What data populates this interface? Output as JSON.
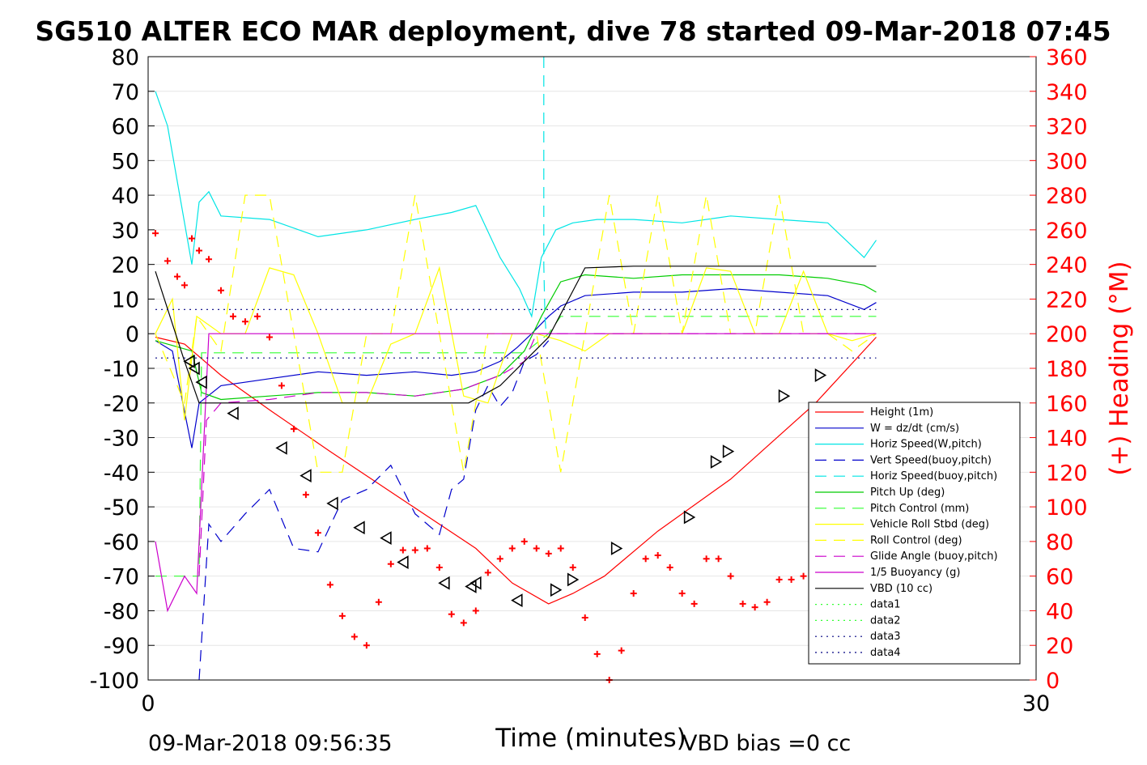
{
  "chart_data": {
    "type": "line",
    "title": "SG510 ALTER ECO MAR deployment, dive 78 started 09-Mar-2018 07:45",
    "xlabel": "Time (minutes)",
    "ylabel_right": "(+) Heading (°M)",
    "xlim": [
      0,
      30
    ],
    "ylim_left": [
      -100,
      80
    ],
    "ylim_right": [
      0,
      360
    ],
    "x_ticks": [
      "0",
      "30"
    ],
    "y_ticks_left": [
      "80",
      "70",
      "60",
      "50",
      "40",
      "30",
      "20",
      "10",
      "0",
      "-10",
      "-20",
      "-30",
      "-40",
      "-50",
      "-60",
      "-70",
      "-80",
      "-90",
      "-100"
    ],
    "y_ticks_right": [
      "360",
      "340",
      "320",
      "300",
      "280",
      "260",
      "240",
      "220",
      "200",
      "180",
      "160",
      "140",
      "120",
      "100",
      "80",
      "60",
      "40",
      "20",
      "0"
    ],
    "grid": true,
    "legend_position": "bottom-right",
    "footer_left": "09-Mar-2018 09:56:35",
    "footer_right": "VBD bias =0 cc",
    "colors": {
      "red": "#ff0000",
      "blue": "#0000cc",
      "cyan": "#00e5e5",
      "green": "#00cc00",
      "lime": "#33ff33",
      "yellow": "#ffff00",
      "magenta": "#cc00cc",
      "black": "#000000",
      "navy": "#000080"
    },
    "series": [
      {
        "name": "Height (1m)",
        "color": "#ff0000",
        "style": "solid",
        "x": [
          0.3,
          1.5,
          3,
          5,
          7.5,
          10.5,
          13.5,
          15,
          16.5,
          17.5,
          18.8,
          21,
          24,
          27.5,
          30
        ],
        "y": [
          -1,
          -3,
          -12,
          -22,
          -34,
          -48,
          -62,
          -72,
          -78,
          -75,
          -70,
          -57,
          -42,
          -20,
          -1
        ]
      },
      {
        "name": "W = dz/dt (cm/s)",
        "color": "#0000cc",
        "style": "solid",
        "x": [
          0.3,
          1,
          1.8,
          2.1,
          3,
          5,
          7,
          9,
          11,
          12.5,
          13.5,
          14.5,
          15.2,
          15.8,
          16.5,
          17,
          18,
          20,
          22,
          24,
          26,
          28,
          29.5,
          30
        ],
        "y": [
          -2,
          -5,
          -33,
          -20,
          -15,
          -13,
          -11,
          -12,
          -11,
          -12,
          -11,
          -8,
          -4,
          0,
          5,
          8,
          11,
          12,
          12,
          13,
          12,
          11,
          7,
          9
        ]
      },
      {
        "name": "Horiz Speed(W,pitch)",
        "color": "#00e5e5",
        "style": "solid",
        "x": [
          0.3,
          0.8,
          1.3,
          1.8,
          2.1,
          2.5,
          3,
          5,
          7,
          9,
          11,
          12.5,
          13.5,
          14.5,
          15.3,
          15.8,
          16.2,
          16.8,
          17.5,
          18.5,
          20,
          22,
          24,
          26,
          28,
          29.5,
          30
        ],
        "y": [
          70,
          60,
          40,
          20,
          38,
          41,
          34,
          33,
          28,
          30,
          33,
          35,
          37,
          22,
          13,
          5,
          22,
          30,
          32,
          33,
          33,
          32,
          34,
          33,
          32,
          22,
          27
        ]
      },
      {
        "name": "Vert Speed(buoy,pitch)",
        "color": "#0000cc",
        "style": "dash",
        "x": [
          2.1,
          2.5,
          3,
          4,
          5,
          6,
          7,
          8,
          9,
          10,
          11,
          12,
          12.5,
          13,
          13.5,
          14,
          14.5,
          15,
          15.5,
          16,
          16.5
        ],
        "y": [
          -100,
          -55,
          -60,
          -52,
          -45,
          -62,
          -63,
          -48,
          -45,
          -38,
          -52,
          -58,
          -45,
          -42,
          -22,
          -15,
          -21,
          -17,
          -8,
          -6,
          -2
        ]
      },
      {
        "name": "Horiz Speed(buoy,pitch)",
        "color": "#00e5e5",
        "style": "dash",
        "x": [
          16.3,
          16.3,
          16.35,
          16.4
        ],
        "y": [
          80,
          20,
          5,
          0
        ]
      },
      {
        "name": "Pitch Up (deg)",
        "color": "#00cc00",
        "style": "solid",
        "x": [
          0.3,
          1.8,
          2.2,
          3,
          5,
          7,
          9,
          11,
          13,
          14.5,
          15.5,
          16.2,
          17,
          18,
          20,
          22,
          24,
          26,
          28,
          29.5,
          30
        ],
        "y": [
          -2,
          -5,
          -17,
          -19,
          -18,
          -17,
          -17,
          -18,
          -16,
          -12,
          -5,
          5,
          15,
          17,
          16,
          17,
          17,
          17,
          16,
          14,
          12
        ]
      },
      {
        "name": "Pitch Control (mm)",
        "color": "#33ff33",
        "style": "dash",
        "x": [
          0.3,
          2.1,
          2.2,
          5,
          10,
          15.5,
          16.5,
          17,
          30
        ],
        "y": [
          -70,
          -70,
          -5.5,
          -5.5,
          -5.5,
          -5.5,
          0,
          5,
          5
        ]
      },
      {
        "name": "Vehicle Roll Stbd (deg)",
        "color": "#ffff00",
        "style": "solid",
        "x": [
          0.3,
          1,
          1.5,
          2,
          3,
          4,
          5,
          6,
          7,
          8,
          9,
          10,
          11,
          12,
          13,
          14,
          15,
          16,
          17,
          18,
          19,
          20,
          21,
          22,
          23,
          24,
          25,
          26,
          27,
          28,
          29,
          30
        ],
        "y": [
          0,
          10,
          -25,
          5,
          0,
          0,
          19,
          17,
          0,
          -20,
          -20,
          -3,
          0,
          19,
          -18,
          -20,
          0,
          0,
          -2,
          -5,
          0,
          0,
          0,
          0,
          19,
          18,
          0,
          0,
          18,
          0,
          -2,
          0
        ]
      },
      {
        "name": "Roll Control (deg)",
        "color": "#ffff00",
        "style": "dash",
        "x": [
          0.3,
          1.5,
          2,
          3,
          4,
          5,
          6,
          7,
          8,
          9,
          10,
          11,
          12,
          13,
          14,
          15,
          16,
          17,
          18,
          19,
          20,
          21,
          22,
          23,
          24,
          25,
          26,
          27,
          28,
          29,
          30
        ],
        "y": [
          0,
          -20,
          5,
          -5,
          40,
          40,
          0,
          -40,
          -40,
          0,
          0,
          40,
          0,
          -40,
          0,
          0,
          0,
          -40,
          0,
          40,
          0,
          40,
          0,
          40,
          0,
          0,
          40,
          0,
          0,
          -5,
          0
        ]
      },
      {
        "name": "Glide Angle (buoy,pitch)",
        "color": "#cc00cc",
        "style": "dash",
        "x": [
          2.1,
          2.4,
          3,
          5,
          7,
          9,
          11,
          13,
          14.5,
          15.5,
          16,
          16.5,
          30
        ],
        "y": [
          -70,
          -25,
          -20,
          -19,
          -17,
          -17,
          -18,
          -16,
          -12,
          -8,
          0,
          0,
          0
        ]
      },
      {
        "name": "1/5 Buoyancy (g)",
        "color": "#cc00cc",
        "style": "solid",
        "x": [
          0.3,
          0.8,
          1.5,
          2,
          2.5,
          16.5,
          30
        ],
        "y": [
          -60,
          -80,
          -70,
          -75,
          0,
          0,
          0
        ]
      },
      {
        "name": "VBD (10 cc)",
        "color": "#000000",
        "style": "solid",
        "x": [
          0.3,
          1.5,
          2.1,
          13.2,
          14.5,
          15.5,
          16.5,
          18,
          20,
          25,
          30
        ],
        "y": [
          18,
          -8,
          -20,
          -20,
          -15,
          -8,
          -1,
          19,
          19.5,
          19.5,
          19.5
        ]
      },
      {
        "name": "data1",
        "color": "#33ff33",
        "style": "dot",
        "x": [],
        "y": []
      },
      {
        "name": "data2",
        "color": "#33ff33",
        "style": "dot",
        "x": [],
        "y": []
      },
      {
        "name": "data3",
        "color": "#000080",
        "style": "dot",
        "x": [
          0.3,
          30
        ],
        "y": [
          7,
          7
        ]
      },
      {
        "name": "data4",
        "color": "#000080",
        "style": "dot",
        "x": [
          0.3,
          30
        ],
        "y": [
          -7,
          -7
        ]
      }
    ],
    "heading_series": {
      "axis": "right",
      "color": "#ff0000",
      "marker": "+",
      "x": [
        0.3,
        0.8,
        1.2,
        1.5,
        1.8,
        2.1,
        2.5,
        3,
        3.5,
        4,
        4.5,
        5,
        5.5,
        6,
        6.5,
        7,
        7.5,
        8,
        8.5,
        9,
        9.5,
        10,
        10.5,
        11,
        11.5,
        12,
        12.5,
        13,
        13.5,
        14,
        14.5,
        15,
        15.5,
        16,
        16.5,
        17,
        17.5,
        18,
        18.5,
        19,
        19.5,
        20,
        20.5,
        21,
        21.5,
        22,
        22.5,
        23,
        23.5,
        24,
        24.5,
        25,
        25.5,
        26,
        26.5,
        27,
        27.5,
        28,
        28.5,
        29,
        29.5,
        30
      ],
      "y": [
        258,
        242,
        233,
        228,
        255,
        248,
        243,
        225,
        210,
        207,
        210,
        198,
        170,
        145,
        107,
        85,
        55,
        37,
        25,
        20,
        45,
        67,
        75,
        75,
        76,
        65,
        38,
        33,
        40,
        62,
        70,
        76,
        80,
        76,
        73,
        76,
        65,
        36,
        15,
        0,
        17,
        50,
        70,
        72,
        65,
        50,
        44,
        70,
        70,
        60,
        44,
        42,
        45,
        58,
        58,
        60,
        75,
        70,
        60,
        62,
        55,
        50
      ]
    },
    "dive_markers": {
      "color": "#000000",
      "marker": "triangle",
      "x": [
        1.7,
        1.9,
        2.2,
        3.5,
        5.5,
        6.5,
        7.6,
        8.7,
        9.8,
        10.5,
        12.2,
        13.3,
        13.5,
        15.2,
        16.8,
        17.5,
        19.3,
        22.3,
        23.4,
        23.9,
        26.2,
        27.7
      ],
      "y": [
        -8,
        -10,
        -14,
        -23,
        -33,
        -41,
        -49,
        -56,
        -59,
        -66,
        -72,
        -73,
        -72,
        -77,
        -74,
        -71,
        -62,
        -53,
        -37,
        -34,
        -18,
        -12
      ]
    }
  }
}
